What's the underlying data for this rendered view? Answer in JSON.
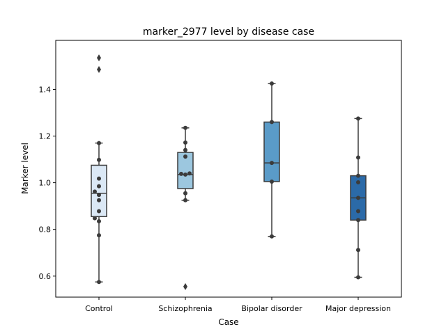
{
  "chart_data": {
    "type": "box",
    "title": "marker_2977 level by disease case",
    "xlabel": "Case",
    "ylabel": "Marker level",
    "categories": [
      "Control",
      "Schizophrenia",
      "Bipolar disorder",
      "Major depression"
    ],
    "ylim": [
      0.51,
      1.61
    ],
    "yticks": [
      0.6,
      0.8,
      1.0,
      1.2,
      1.4
    ],
    "ytick_labels": [
      "0.6",
      "0.8",
      "1.0",
      "1.2",
      "1.4"
    ],
    "grid": false,
    "boxes": [
      {
        "name": "Control",
        "color": "#dbe8f5",
        "q1": 0.855,
        "median": 0.955,
        "q3": 1.075,
        "whisker_low": 0.575,
        "whisker_high": 1.17,
        "outliers": [
          1.535,
          1.485
        ],
        "points": [
          0.575,
          0.775,
          0.835,
          0.848,
          0.878,
          0.925,
          0.948,
          0.962,
          0.985,
          1.018,
          1.098,
          1.17
        ]
      },
      {
        "name": "Schizophrenia",
        "color": "#9cc7df",
        "q1": 0.975,
        "median": 1.035,
        "q3": 1.13,
        "whisker_low": 0.925,
        "whisker_high": 1.235,
        "outliers": [
          0.555
        ],
        "points": [
          0.925,
          0.955,
          1.035,
          1.038,
          1.04,
          1.112,
          1.14,
          1.172,
          1.235
        ]
      },
      {
        "name": "Bipolar disorder",
        "color": "#5a9bc8",
        "q1": 1.005,
        "median": 1.085,
        "q3": 1.26,
        "whisker_low": 0.77,
        "whisker_high": 1.425,
        "outliers": [],
        "points": [
          0.77,
          1.005,
          1.085,
          1.26,
          1.425
        ]
      },
      {
        "name": "Major depression",
        "color": "#2b6aa8",
        "q1": 0.84,
        "median": 0.935,
        "q3": 1.03,
        "whisker_low": 0.595,
        "whisker_high": 1.275,
        "outliers": [],
        "points": [
          0.595,
          0.712,
          0.84,
          0.878,
          0.935,
          1.002,
          1.03,
          1.108,
          1.275
        ]
      }
    ]
  }
}
